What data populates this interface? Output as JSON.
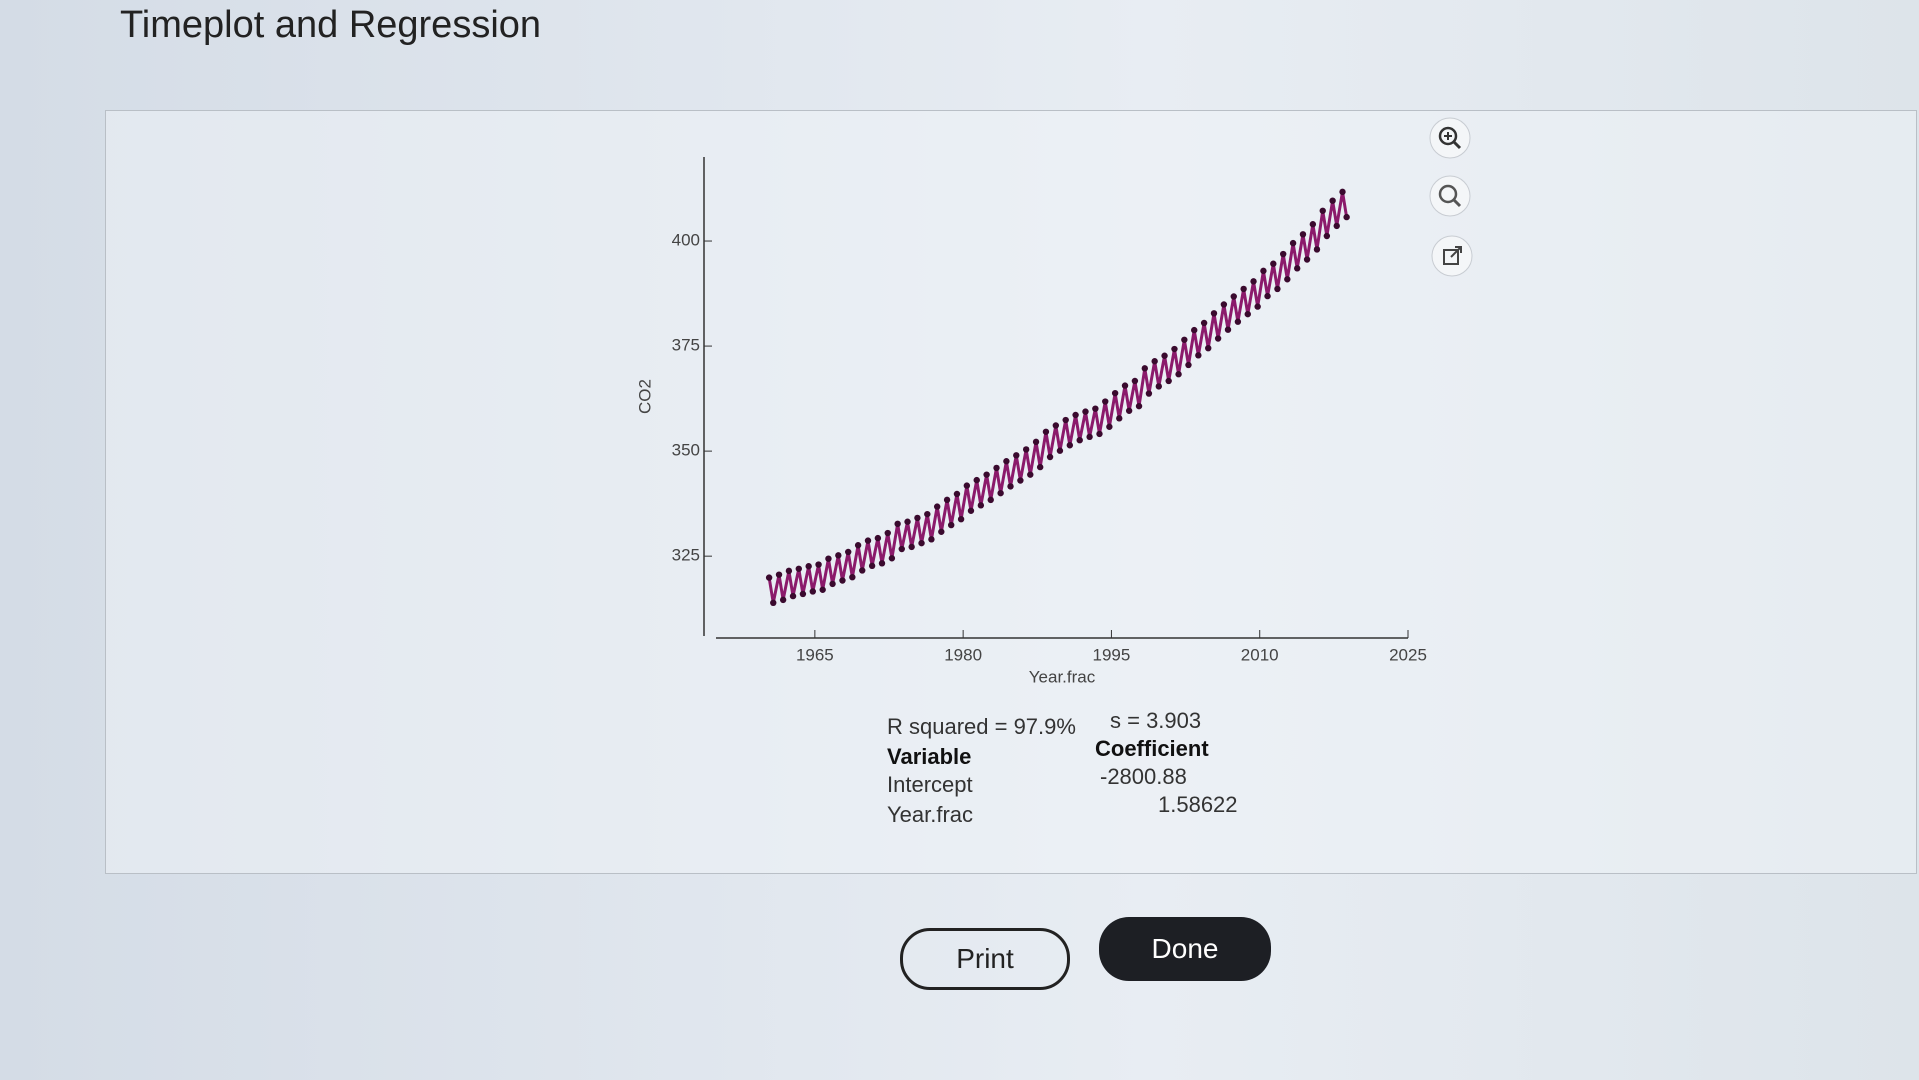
{
  "dialog": {
    "title": "Timeplot and Regression"
  },
  "chart_data": {
    "type": "scatter",
    "xlabel": "Year.frac",
    "ylabel": "CO2",
    "color": "#8b1a6b",
    "connect": true,
    "xlim": [
      1955,
      2025
    ],
    "xticks": [
      1965,
      1980,
      1995,
      2010,
      2025
    ],
    "ylim": [
      306,
      420
    ],
    "yticks": [
      325,
      350,
      375,
      400
    ],
    "x": [
      1960.375,
      1960.792,
      1961.375,
      1961.792,
      1962.375,
      1962.792,
      1963.375,
      1963.792,
      1964.375,
      1964.792,
      1965.375,
      1965.792,
      1966.375,
      1966.792,
      1967.375,
      1967.792,
      1968.375,
      1968.792,
      1969.375,
      1969.792,
      1970.375,
      1970.792,
      1971.375,
      1971.792,
      1972.375,
      1972.792,
      1973.375,
      1973.792,
      1974.375,
      1974.792,
      1975.375,
      1975.792,
      1976.375,
      1976.792,
      1977.375,
      1977.792,
      1978.375,
      1978.792,
      1979.375,
      1979.792,
      1980.375,
      1980.792,
      1981.375,
      1981.792,
      1982.375,
      1982.792,
      1983.375,
      1983.792,
      1984.375,
      1984.792,
      1985.375,
      1985.792,
      1986.375,
      1986.792,
      1987.375,
      1987.792,
      1988.375,
      1988.792,
      1989.375,
      1989.792,
      1990.375,
      1990.792,
      1991.375,
      1991.792,
      1992.375,
      1992.792,
      1993.375,
      1993.792,
      1994.375,
      1994.792,
      1995.375,
      1995.792,
      1996.375,
      1996.792,
      1997.375,
      1997.792,
      1998.375,
      1998.792,
      1999.375,
      1999.792,
      2000.375,
      2000.792,
      2001.375,
      2001.792,
      2002.375,
      2002.792,
      2003.375,
      2003.792,
      2004.375,
      2004.792,
      2005.375,
      2005.792,
      2006.375,
      2006.792,
      2007.375,
      2007.792,
      2008.375,
      2008.792,
      2009.375,
      2009.792,
      2010.375,
      2010.792,
      2011.375,
      2011.792,
      2012.375,
      2012.792,
      2013.375,
      2013.792,
      2014.375,
      2014.792,
      2015.375,
      2015.792,
      2016.375,
      2016.792,
      2017.375,
      2017.792,
      2018.375,
      2018.792
    ],
    "values": [
      319.9,
      313.9,
      320.6,
      314.6,
      321.5,
      315.5,
      322.0,
      316.0,
      322.6,
      316.6,
      323.0,
      317.0,
      324.4,
      318.4,
      325.2,
      319.2,
      326.0,
      320.0,
      327.6,
      321.6,
      328.7,
      322.7,
      329.3,
      323.3,
      330.5,
      324.5,
      332.7,
      326.7,
      333.2,
      327.2,
      334.1,
      328.1,
      335.0,
      329.0,
      336.8,
      330.8,
      338.4,
      332.4,
      339.8,
      333.8,
      341.8,
      335.8,
      343.1,
      337.1,
      344.4,
      338.4,
      346.0,
      340.0,
      347.6,
      341.6,
      349.0,
      343.0,
      350.4,
      344.4,
      352.2,
      346.2,
      354.6,
      348.6,
      356.1,
      350.1,
      357.4,
      351.4,
      358.6,
      352.6,
      359.4,
      353.4,
      360.1,
      354.1,
      361.8,
      355.8,
      363.8,
      357.8,
      365.6,
      359.6,
      366.7,
      360.7,
      369.7,
      363.7,
      371.4,
      365.4,
      372.7,
      366.7,
      374.3,
      368.3,
      376.5,
      370.5,
      378.8,
      372.8,
      380.5,
      374.5,
      382.8,
      376.8,
      384.9,
      378.9,
      386.8,
      380.8,
      388.6,
      382.6,
      390.4,
      384.4,
      392.9,
      386.9,
      394.6,
      388.6,
      396.9,
      390.9,
      399.5,
      393.5,
      401.6,
      395.6,
      404.0,
      398.0,
      407.2,
      401.2,
      409.6,
      403.6,
      411.7,
      405.7
    ]
  },
  "regression": {
    "r_squared": "R squared = 97.9%",
    "s": "s = 3.903",
    "header": [
      "Variable",
      "Coefficient"
    ],
    "rows": [
      [
        "Intercept",
        "-2800.88"
      ],
      [
        "Year.frac",
        "1.58622"
      ]
    ]
  },
  "buttons": {
    "print": "Print",
    "done": "Done"
  }
}
